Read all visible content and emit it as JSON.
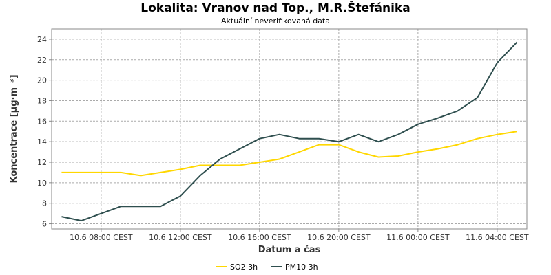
{
  "chart_data": {
    "type": "line",
    "title": "Lokalita: Vranov nad Top., M.R.Štefánika",
    "subtitle": "Aktuální neverifikovaná data",
    "xlabel": "Datum a čas",
    "ylabel": "Koncentrace [µg·m⁻³]",
    "ylim": [
      5.5,
      25
    ],
    "yticks": [
      6,
      8,
      10,
      12,
      14,
      16,
      18,
      20,
      22,
      24
    ],
    "xticks": [
      {
        "pos": 8,
        "label": "10.6 08:00 CEST"
      },
      {
        "pos": 12,
        "label": "10.6 12:00 CEST"
      },
      {
        "pos": 16,
        "label": "10.6 16:00 CEST"
      },
      {
        "pos": 20,
        "label": "10.6 20:00 CEST"
      },
      {
        "pos": 24,
        "label": "11.6 00:00 CEST"
      },
      {
        "pos": 28,
        "label": "11.6 04:00 CEST"
      }
    ],
    "xlim": [
      5.5,
      29.5
    ],
    "x_unit": "hours from 10.6 00:00 CEST",
    "x": [
      6,
      7,
      8,
      9,
      10,
      11,
      12,
      13,
      14,
      15,
      16,
      17,
      18,
      19,
      20,
      21,
      22,
      23,
      24,
      25,
      26,
      27,
      28,
      29
    ],
    "grid": true,
    "legend_position": "bottom",
    "series": [
      {
        "name": "SO2 3h",
        "color": "#ffd700",
        "values": [
          11.0,
          11.0,
          11.0,
          11.0,
          10.7,
          11.0,
          11.3,
          11.7,
          11.7,
          11.7,
          12.0,
          12.3,
          13.0,
          13.7,
          13.7,
          13.0,
          12.5,
          12.6,
          13.0,
          13.3,
          13.7,
          14.3,
          14.7,
          15.0
        ]
      },
      {
        "name": "PM10 3h",
        "color": "#2f4f4f",
        "values": [
          6.7,
          6.3,
          7.0,
          7.7,
          7.7,
          7.7,
          8.7,
          10.7,
          12.3,
          13.3,
          14.3,
          14.7,
          14.3,
          14.3,
          14.0,
          14.7,
          14.0,
          14.7,
          15.7,
          16.3,
          17.0,
          18.3,
          21.7,
          23.7
        ]
      }
    ]
  }
}
